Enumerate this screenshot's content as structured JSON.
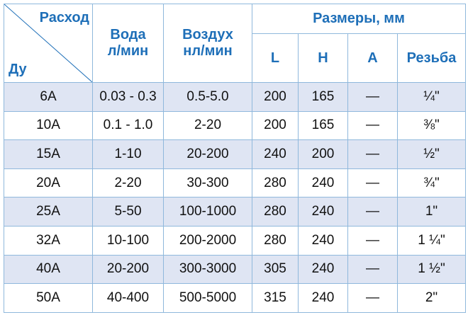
{
  "header": {
    "corner_top": "Расход",
    "corner_bottom": "Ду",
    "water": [
      "Вода",
      "л/мин"
    ],
    "air": [
      "Воздух",
      "нл/мин"
    ],
    "dimensions": "Размеры, мм",
    "L": "L",
    "H": "H",
    "A": "A",
    "thread": "Резьба"
  },
  "colors": {
    "header_text": "#1e6fb8",
    "shaded_row": "#dfe5f3",
    "border": "#8fb8dc"
  },
  "rows": [
    [
      "6A",
      "0.03 - 0.3",
      "0.5-5.0",
      "200",
      "165",
      "—",
      "¼\""
    ],
    [
      "10A",
      "0.1 - 1.0",
      "2-20",
      "200",
      "165",
      "—",
      "⅜\""
    ],
    [
      "15A",
      "1-10",
      "20-200",
      "240",
      "200",
      "—",
      "½\""
    ],
    [
      "20A",
      "2-20",
      "30-300",
      "280",
      "240",
      "—",
      "¾\""
    ],
    [
      "25A",
      "5-50",
      "100-1000",
      "280",
      "240",
      "—",
      "1\""
    ],
    [
      "32A",
      "10-100",
      "200-2000",
      "280",
      "240",
      "—",
      "1 ¼\""
    ],
    [
      "40A",
      "20-200",
      "300-3000",
      "305",
      "240",
      "—",
      "1 ½\""
    ],
    [
      "50A",
      "40-400",
      "500-5000",
      "315",
      "240",
      "—",
      "2\""
    ]
  ]
}
